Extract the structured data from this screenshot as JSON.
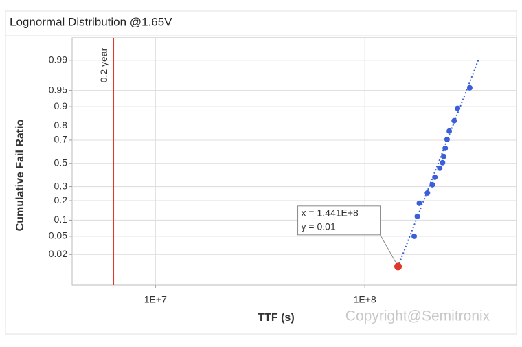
{
  "chart_data": {
    "type": "scatter",
    "title": "Lognormal Distribution @1.65V",
    "xlabel": "TTF (s)",
    "ylabel": "Cumulative Fail Ratio",
    "xscale": "log",
    "yscale": "probit",
    "grid": true,
    "xlim": [
      4000000,
      530000000
    ],
    "xticks": [
      {
        "value": 10000000,
        "label": "1E+7"
      },
      {
        "value": 100000000,
        "label": "1E+8"
      }
    ],
    "ylim": [
      0.003,
      0.9977
    ],
    "yticks": [
      0.02,
      0.05,
      0.1,
      0.2,
      0.3,
      0.5,
      0.7,
      0.8,
      0.9,
      0.95,
      0.99
    ],
    "points": {
      "color": "#3a5fd9",
      "x": [
        172000000,
        178000000,
        182000000,
        199000000,
        210000000,
        216000000,
        228000000,
        235000000,
        238000000,
        242000000,
        247000000,
        253000000,
        267000000,
        277000000,
        317000000
      ],
      "y": [
        0.05,
        0.116,
        0.184,
        0.252,
        0.315,
        0.378,
        0.457,
        0.506,
        0.562,
        0.633,
        0.706,
        0.767,
        0.832,
        0.893,
        0.956
      ]
    },
    "fit": {
      "color": "#3a5fd9",
      "x": [
        144100000,
        348000000
      ],
      "y": [
        0.01,
        0.99
      ]
    },
    "highlight": {
      "color": "#e0392b",
      "x": 144100000,
      "y": 0.01,
      "value_labels": [
        "x = 1.441E+8",
        "y = 0.01"
      ]
    },
    "reference": {
      "color": "#e0392b",
      "x": 6307200,
      "label": "0.2 year"
    },
    "watermark": "Copyright@Semitronix"
  }
}
